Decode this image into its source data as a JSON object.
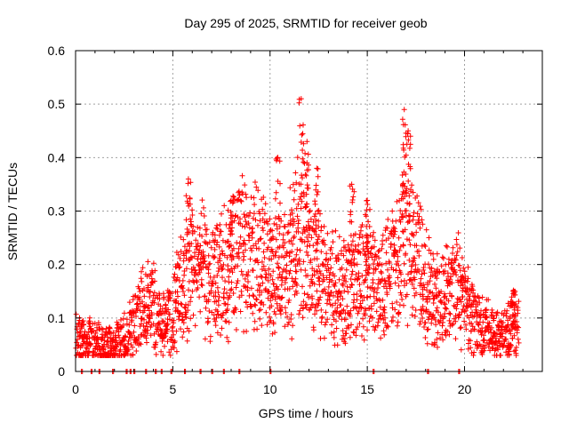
{
  "chart_data": {
    "type": "scatter",
    "title": "Day 295 of 2025, SRMTID for receiver geob",
    "xlabel": "GPS time / hours",
    "ylabel": "SRMTID / TECUs",
    "xlim": [
      0,
      24
    ],
    "ylim": [
      0,
      0.6
    ],
    "xticks": [
      0,
      5,
      10,
      15,
      20
    ],
    "xtick_labels": [
      "0",
      "5",
      "10",
      "15",
      "20"
    ],
    "yticks": [
      0,
      0.1,
      0.2,
      0.3,
      0.4,
      0.5,
      0.6
    ],
    "ytick_labels": [
      "0",
      "0.1",
      "0.2",
      "0.3",
      "0.4",
      "0.5",
      "0.6"
    ],
    "grid": true,
    "marker": "+",
    "colors": {
      "marker": "#ff0000",
      "grid": "#a0a0a0",
      "axis": "#000000"
    },
    "series": [
      {
        "name": "SRMTID",
        "trend": [
          [
            0.0,
            0.062
          ],
          [
            0.5,
            0.058
          ],
          [
            1.0,
            0.05
          ],
          [
            1.5,
            0.045
          ],
          [
            2.0,
            0.048
          ],
          [
            2.5,
            0.06
          ],
          [
            3.0,
            0.085
          ],
          [
            3.5,
            0.13
          ],
          [
            4.0,
            0.12
          ],
          [
            4.5,
            0.09
          ],
          [
            5.0,
            0.11
          ],
          [
            5.5,
            0.16
          ],
          [
            6.0,
            0.2
          ],
          [
            6.5,
            0.19
          ],
          [
            7.0,
            0.17
          ],
          [
            7.5,
            0.18
          ],
          [
            8.0,
            0.2
          ],
          [
            8.5,
            0.24
          ],
          [
            9.0,
            0.22
          ],
          [
            9.5,
            0.21
          ],
          [
            10.0,
            0.19
          ],
          [
            10.5,
            0.18
          ],
          [
            11.0,
            0.2
          ],
          [
            11.5,
            0.26
          ],
          [
            12.0,
            0.22
          ],
          [
            12.5,
            0.19
          ],
          [
            13.0,
            0.17
          ],
          [
            13.5,
            0.15
          ],
          [
            14.0,
            0.16
          ],
          [
            14.5,
            0.18
          ],
          [
            15.0,
            0.19
          ],
          [
            15.5,
            0.16
          ],
          [
            16.0,
            0.18
          ],
          [
            16.5,
            0.19
          ],
          [
            17.0,
            0.26
          ],
          [
            17.5,
            0.24
          ],
          [
            18.0,
            0.16
          ],
          [
            18.5,
            0.13
          ],
          [
            19.0,
            0.15
          ],
          [
            19.5,
            0.17
          ],
          [
            20.0,
            0.13
          ],
          [
            20.5,
            0.1
          ],
          [
            21.0,
            0.08
          ],
          [
            21.5,
            0.07
          ],
          [
            22.0,
            0.07
          ],
          [
            22.5,
            0.09
          ],
          [
            22.8,
            0.08
          ]
        ],
        "peaks": [
          {
            "x": 5.8,
            "y": 0.36
          },
          {
            "x": 8.0,
            "y": 0.32
          },
          {
            "x": 10.4,
            "y": 0.4
          },
          {
            "x": 11.6,
            "y": 0.51
          },
          {
            "x": 11.9,
            "y": 0.43
          },
          {
            "x": 12.4,
            "y": 0.38
          },
          {
            "x": 14.2,
            "y": 0.35
          },
          {
            "x": 15.0,
            "y": 0.32
          },
          {
            "x": 16.9,
            "y": 0.49
          },
          {
            "x": 17.1,
            "y": 0.45
          },
          {
            "x": 22.5,
            "y": 0.15
          }
        ],
        "zero_values_at_hours": [
          0.3,
          0.8,
          1.2,
          1.9,
          2.6,
          2.8,
          3.0,
          3.6,
          4.1,
          4.4,
          4.9,
          5.6,
          6.4,
          7.0,
          7.6,
          8.4,
          10.0,
          15.3,
          18.1,
          19.7
        ],
        "lower_envelope": 0.03,
        "upper_envelope": 0.3
      }
    ]
  }
}
